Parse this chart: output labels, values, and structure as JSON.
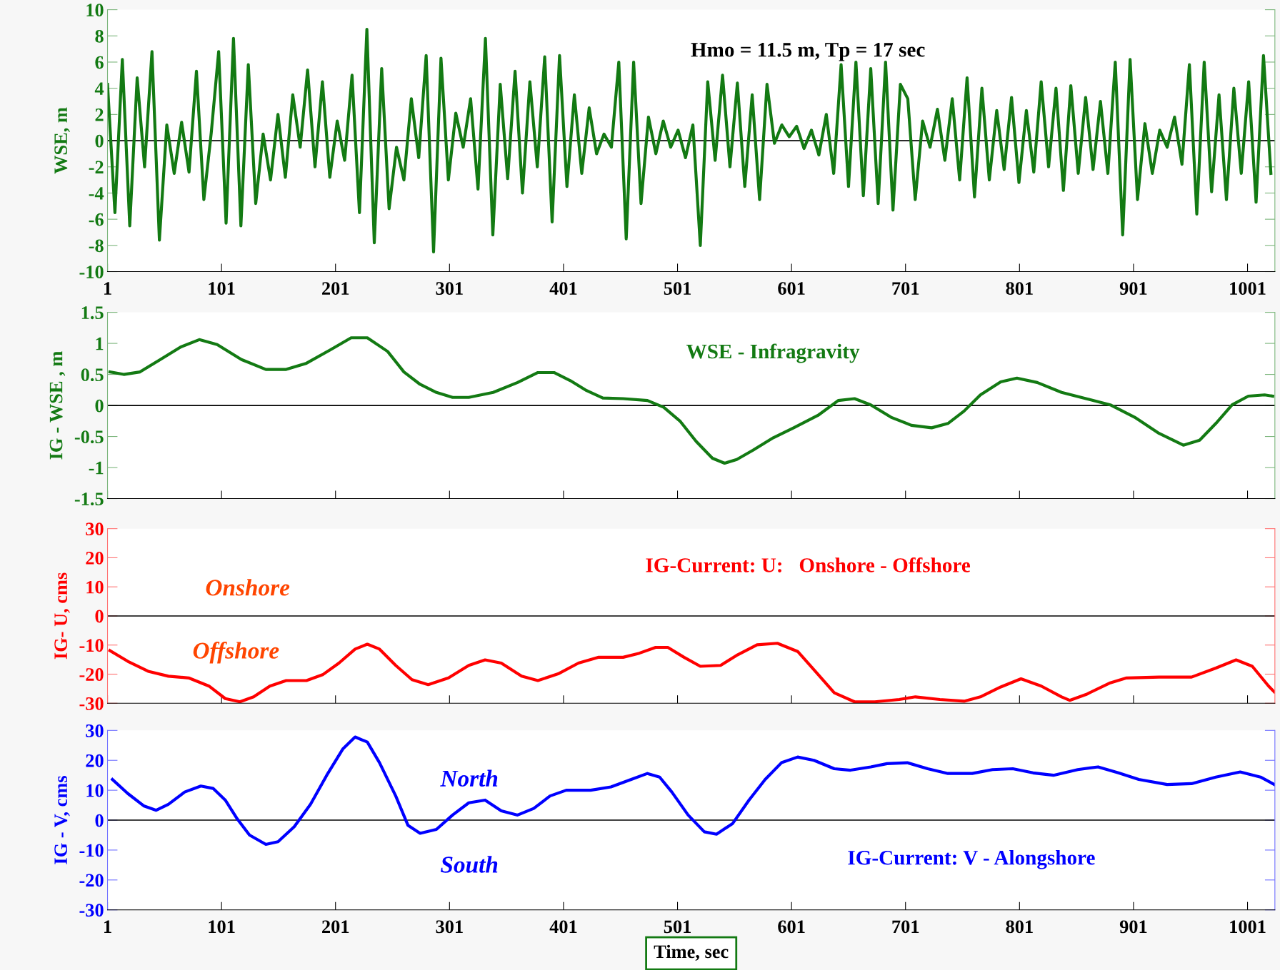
{
  "chart_data": [
    {
      "type": "line",
      "ylabel": "WSE, m",
      "annotations": [
        "Hmo = 11.5 m, Tp = 17 sec"
      ],
      "xlim": [
        1,
        1025
      ],
      "xticks": [
        1,
        101,
        201,
        301,
        401,
        501,
        601,
        701,
        801,
        901,
        1001
      ],
      "ylim": [
        -10,
        10
      ],
      "yticks": [
        -10,
        -8,
        -6,
        -4,
        -2,
        0,
        2,
        4,
        6,
        8,
        10
      ],
      "grid": false,
      "legend": false,
      "ref_lines": [
        {
          "axis": "y",
          "value": 0,
          "color": "#000000"
        }
      ],
      "series": [
        {
          "color": "#137a13",
          "x": [
            1,
            7.5,
            14,
            20.5,
            27,
            33.5,
            40,
            46.5,
            53,
            59.5,
            66,
            72.5,
            79,
            85.5,
            92,
            98.5,
            105,
            111.5,
            118,
            124.5,
            131,
            137.5,
            144,
            150.5,
            157,
            163.5,
            170,
            176.5,
            183,
            189.5,
            196,
            202.5,
            209,
            215.5,
            222,
            228.5,
            235,
            241.5,
            248,
            254.5,
            261,
            267.5,
            274,
            280.5,
            287,
            293.5,
            300,
            306.5,
            313,
            319.5,
            326,
            332.5,
            339,
            345.5,
            352,
            358.5,
            365,
            371.5,
            378,
            384.5,
            391,
            397.5,
            404,
            410.5,
            417,
            423.5,
            430,
            436.5,
            443,
            449.5,
            456,
            462.5,
            469,
            475.5,
            482,
            488.5,
            495,
            501.5,
            508,
            514.5,
            521,
            527.5,
            534,
            540.5,
            547,
            553.5,
            560,
            566.5,
            573,
            579.5,
            586,
            592.5,
            599,
            605.5,
            612,
            618.5,
            625,
            631.5,
            638,
            644.5,
            651,
            657.5,
            664,
            670.5,
            677,
            683.5,
            690,
            696.5,
            703,
            709.5,
            716,
            722.5,
            729,
            735.5,
            742,
            748.5,
            755,
            761.5,
            768,
            774.5,
            781,
            787.5,
            794,
            800.5,
            807,
            813.5,
            820,
            826.5,
            833,
            839.5,
            846,
            852.5,
            859,
            865.5,
            872,
            878.5,
            885,
            891.5,
            898,
            904.5,
            911,
            917.5,
            924,
            930.5,
            937,
            943.5,
            950,
            956.5,
            963,
            969.5,
            976,
            982.5,
            989,
            995.5,
            1002,
            1008.5,
            1015,
            1021.5
          ],
          "values": [
            4.3,
            -5.5,
            6.2,
            -6.5,
            4.8,
            -2,
            6.8,
            -7.6,
            1.2,
            -2.5,
            1.4,
            -2.4,
            5.3,
            -4.5,
            0.6,
            6.8,
            -6.3,
            7.8,
            -6.5,
            5.8,
            -4.8,
            0.5,
            -3,
            2,
            -2.8,
            3.5,
            -0.5,
            5.4,
            -2,
            4.5,
            -2.8,
            1.5,
            -1.5,
            5,
            -5.5,
            8.5,
            -7.8,
            5.5,
            -5.2,
            -0.5,
            -3,
            3.2,
            -1.3,
            6.5,
            -8.5,
            6.3,
            -3,
            2.1,
            -0.5,
            3.2,
            -3.7,
            7.8,
            -7.2,
            4.3,
            -2.9,
            5.3,
            -4,
            4.5,
            -2,
            6.4,
            -6.2,
            6.5,
            -3.5,
            3.5,
            -2.5,
            2.5,
            -1,
            0.5,
            -0.5,
            6,
            -7.5,
            6,
            -4.8,
            1.8,
            -1,
            1.5,
            -0.5,
            0.8,
            -1.3,
            1.2,
            -8,
            4.5,
            -1.5,
            5,
            -2,
            4.4,
            -3.5,
            3.5,
            -4.5,
            4.3,
            -0.2,
            1.2,
            0.3,
            1.1,
            -0.6,
            0.8,
            -1.1,
            2,
            -2.5,
            5.8,
            -3.5,
            6,
            -4.2,
            5.5,
            -4.8,
            6,
            -5.3,
            4.3,
            3.2,
            -4.5,
            1.5,
            -0.5,
            2.4,
            -1.5,
            3.2,
            -3,
            4.8,
            -4.3,
            4,
            -3,
            2.3,
            -2.2,
            3.3,
            -3.2,
            2.3,
            -2.4,
            4.5,
            -2,
            4,
            -3.8,
            4.2,
            -2.5,
            3.3,
            -2.2,
            3,
            -2.5,
            6,
            -7.2,
            6.2,
            -4.5,
            1.3,
            -2.5,
            0.8,
            -0.5,
            1.8,
            -1.8,
            5.8,
            -5.6,
            6,
            -3.9,
            3.5,
            -4.5,
            4,
            -2.5,
            4.5,
            -4.7,
            6.5,
            -2.5
          ]
        }
      ]
    },
    {
      "type": "line",
      "ylabel": "IG - WSE , m",
      "annotations": [
        "WSE - Infragravity"
      ],
      "tick_labels": "y",
      "xlim": [
        1,
        1025
      ],
      "xticks": [
        1,
        101,
        201,
        301,
        401,
        501,
        601,
        701,
        801,
        901,
        1001
      ],
      "ylim": [
        -1.5,
        1.5
      ],
      "yticks": [
        -1.5,
        -1,
        -0.5,
        0,
        0.5,
        1,
        1.5
      ],
      "grid": false,
      "legend": false,
      "ref_lines": [
        {
          "axis": "y",
          "value": 0,
          "color": "#000000"
        }
      ],
      "series": [
        {
          "color": "#137a13",
          "x": [
            3.1,
            15.2,
            29.5,
            47.3,
            65.1,
            81.5,
            97.2,
            118.5,
            139.9,
            157.7,
            175.5,
            196.9,
            214.7,
            228.9,
            246.7,
            261,
            275.2,
            289.5,
            303.7,
            317.9,
            339.3,
            360.7,
            378.5,
            392.7,
            407,
            421.2,
            435.5,
            453.3,
            474.6,
            488.9,
            503.1,
            517.4,
            531.6,
            542.3,
            553,
            567.2,
            585,
            602.9,
            624.2,
            642,
            656.3,
            670.5,
            688.3,
            706.1,
            723.9,
            738.2,
            752.4,
            766.7,
            784.5,
            798.7,
            816.5,
            837.9,
            859.3,
            880.6,
            902,
            923.4,
            944.7,
            959,
            973.2,
            987.5,
            1001.7,
            1016,
            1023.1
          ],
          "values": [
            0.54,
            0.5,
            0.54,
            0.74,
            0.94,
            1.06,
            0.98,
            0.74,
            0.58,
            0.58,
            0.68,
            0.9,
            1.09,
            1.09,
            0.87,
            0.54,
            0.34,
            0.21,
            0.13,
            0.13,
            0.21,
            0.37,
            0.53,
            0.53,
            0.4,
            0.24,
            0.12,
            0.11,
            0.08,
            -0.03,
            -0.25,
            -0.58,
            -0.85,
            -0.93,
            -0.87,
            -0.72,
            -0.52,
            -0.36,
            -0.16,
            0.08,
            0.11,
            0.01,
            -0.19,
            -0.32,
            -0.36,
            -0.29,
            -0.09,
            0.17,
            0.38,
            0.44,
            0.37,
            0.21,
            0.11,
            0.01,
            -0.19,
            -0.45,
            -0.64,
            -0.56,
            -0.29,
            0.01,
            0.15,
            0.17,
            0.15
          ]
        }
      ]
    },
    {
      "type": "line",
      "ylabel": "IG- U, cms",
      "annotations": [
        "IG-Current: U:   Onshore - Offshore",
        "Onshore",
        "Offshore"
      ],
      "tick_labels": "y",
      "xlim": [
        1,
        1025
      ],
      "xticks": [
        1,
        101,
        201,
        301,
        401,
        501,
        601,
        701,
        801,
        901,
        1001
      ],
      "ylim": [
        -30,
        30
      ],
      "yticks": [
        -30,
        -20,
        -10,
        0,
        10,
        20,
        30
      ],
      "grid": false,
      "legend": false,
      "ref_lines": [
        {
          "axis": "y",
          "value": 0,
          "color": "#000000"
        }
      ],
      "series": [
        {
          "color": "#ff0000",
          "x": [
            3.1,
            18.8,
            36.6,
            54.4,
            72.2,
            90,
            104.3,
            117.1,
            129.2,
            143.4,
            157.7,
            175.5,
            189.7,
            204,
            218.2,
            228.9,
            239.6,
            253.8,
            268.1,
            282.3,
            300.1,
            317.9,
            332.2,
            346.4,
            364.2,
            378.5,
            396.3,
            414.1,
            431.9,
            453.3,
            467.5,
            481.8,
            492.5,
            506.7,
            521,
            538.8,
            552.6,
            570.8,
            588.6,
            606.4,
            620.7,
            638.5,
            656.3,
            674.1,
            695.5,
            709.7,
            731.1,
            752.4,
            766.7,
            784.5,
            802.3,
            820.1,
            837.9,
            845,
            859.3,
            880.6,
            894.9,
            923.4,
            951.9,
            973.2,
            991,
            1005.2,
            1019.5,
            1024.5
          ],
          "values": [
            -11.9,
            -15.6,
            -19,
            -20.7,
            -21.3,
            -24.1,
            -28.4,
            -29.5,
            -27.8,
            -24.1,
            -22.2,
            -22.2,
            -20.2,
            -16.2,
            -11.4,
            -9.7,
            -11.4,
            -17,
            -21.9,
            -23.6,
            -21.3,
            -17,
            -15.1,
            -16.2,
            -20.7,
            -22.2,
            -19.9,
            -16.2,
            -14.2,
            -14.2,
            -12.8,
            -10.8,
            -10.8,
            -14.2,
            -17.3,
            -17,
            -13.6,
            -9.9,
            -9.4,
            -12.2,
            -18.5,
            -26.4,
            -29.5,
            -29.5,
            -28.7,
            -27.8,
            -28.7,
            -29.3,
            -27.8,
            -24.4,
            -21.6,
            -24.1,
            -27.8,
            -29,
            -27,
            -23,
            -21.3,
            -21,
            -21,
            -17.9,
            -15.1,
            -17.3,
            -24.1,
            -26.1
          ]
        }
      ]
    },
    {
      "type": "line",
      "ylabel": "IG - V, cms",
      "xlabel": "Time, sec",
      "annotations": [
        "IG-Current: V - Alongshore",
        "North",
        "South"
      ],
      "xlim": [
        1,
        1025
      ],
      "xticks": [
        1,
        101,
        201,
        301,
        401,
        501,
        601,
        701,
        801,
        901,
        1001
      ],
      "ylim": [
        -30,
        30
      ],
      "yticks": [
        -30,
        -20,
        -10,
        0,
        10,
        20,
        30
      ],
      "grid": false,
      "legend": false,
      "ref_lines": [
        {
          "axis": "y",
          "value": 0,
          "color": "#000000"
        }
      ],
      "series": [
        {
          "color": "#0000ff",
          "x": [
            5.3,
            18.8,
            33.1,
            43.7,
            54.4,
            68.7,
            82.9,
            93.6,
            104.3,
            115,
            125.6,
            139.9,
            150.6,
            164.8,
            179.1,
            193.3,
            207.6,
            218.2,
            228.9,
            239.6,
            253.8,
            264.5,
            275.2,
            289.5,
            303.7,
            317.9,
            332.2,
            346.4,
            360.7,
            374.9,
            389.2,
            403.4,
            424.8,
            442.6,
            460.4,
            474.6,
            485.3,
            496,
            510.3,
            524.5,
            535.2,
            549.4,
            563.7,
            577.9,
            592.2,
            606.4,
            620.7,
            638.5,
            652.7,
            670.5,
            684.8,
            702.6,
            720.4,
            738.2,
            759.5,
            777.3,
            795.1,
            812.9,
            830.8,
            852.1,
            869.9,
            887.7,
            905.6,
            930.5,
            951.9,
            973.2,
            994.6,
            1012.4,
            1024.5
          ],
          "values": [
            13.6,
            8.9,
            4.7,
            3.3,
            5.3,
            9.4,
            11.4,
            10.6,
            6.7,
            0.3,
            -5,
            -8.1,
            -7.2,
            -2.2,
            5.3,
            15,
            23.9,
            27.8,
            26.1,
            19.2,
            8.1,
            -1.7,
            -4.4,
            -3.1,
            1.7,
            5.8,
            6.7,
            3.1,
            1.7,
            3.9,
            8.1,
            10,
            10,
            11.1,
            13.6,
            15.6,
            14.4,
            9.4,
            1.7,
            -3.9,
            -4.7,
            -1.1,
            6.7,
            13.6,
            19.2,
            21.1,
            20,
            17.2,
            16.7,
            17.8,
            18.9,
            19.2,
            17.2,
            15.6,
            15.6,
            16.9,
            17.2,
            15.8,
            15,
            16.9,
            17.8,
            15.8,
            13.6,
            11.9,
            12.2,
            14.4,
            16.1,
            14.4,
            11.9
          ]
        }
      ]
    }
  ]
}
